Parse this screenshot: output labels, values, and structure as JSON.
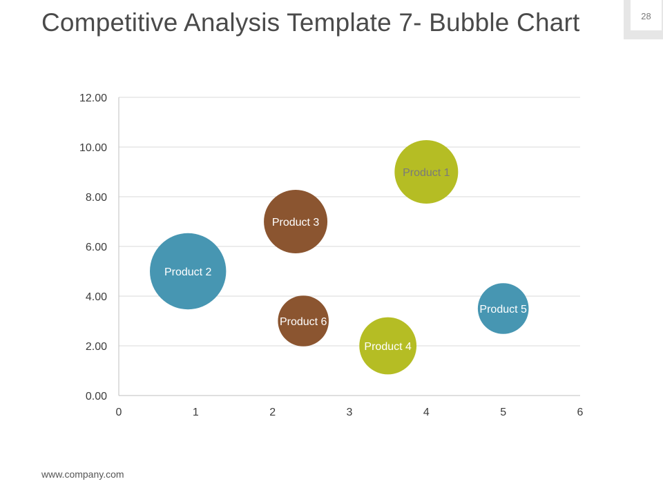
{
  "slide": {
    "title": "Competitive Analysis Template 7- Bubble Chart",
    "page_number": "28",
    "footer_url": "www.company.com"
  },
  "colors": {
    "teal": "#4796b2",
    "brown": "#8b5530",
    "olive": "#b5bd24",
    "grid": "#d9d9d9",
    "axis": "#bfbfbf"
  },
  "chart_data": {
    "type": "scatter",
    "subtype": "bubble",
    "title": "",
    "xlabel": "",
    "ylabel": "",
    "xlim": [
      0,
      6
    ],
    "ylim": [
      0,
      12
    ],
    "x_ticks": [
      "0",
      "1",
      "2",
      "3",
      "4",
      "5",
      "6"
    ],
    "y_ticks": [
      "0.00",
      "2.00",
      "4.00",
      "6.00",
      "8.00",
      "10.00",
      "12.00"
    ],
    "grid": true,
    "legend": "none",
    "series": [
      {
        "name": "Product 1",
        "x": 4.0,
        "y": 9.0,
        "size": 10.0,
        "color": "olive",
        "label_color": "#7a7a7a"
      },
      {
        "name": "Product 2",
        "x": 0.9,
        "y": 5.0,
        "size": 12.0,
        "color": "teal",
        "label_color": "#ffffff"
      },
      {
        "name": "Product 3",
        "x": 2.3,
        "y": 7.0,
        "size": 10.0,
        "color": "brown",
        "label_color": "#ffffff"
      },
      {
        "name": "Product 4",
        "x": 3.5,
        "y": 2.0,
        "size": 9.0,
        "color": "olive",
        "label_color": "#ffffff"
      },
      {
        "name": "Product 5",
        "x": 5.0,
        "y": 3.5,
        "size": 8.0,
        "color": "teal",
        "label_color": "#ffffff"
      },
      {
        "name": "Product 6",
        "x": 2.4,
        "y": 3.0,
        "size": 8.0,
        "color": "brown",
        "label_color": "#ffffff"
      }
    ]
  }
}
